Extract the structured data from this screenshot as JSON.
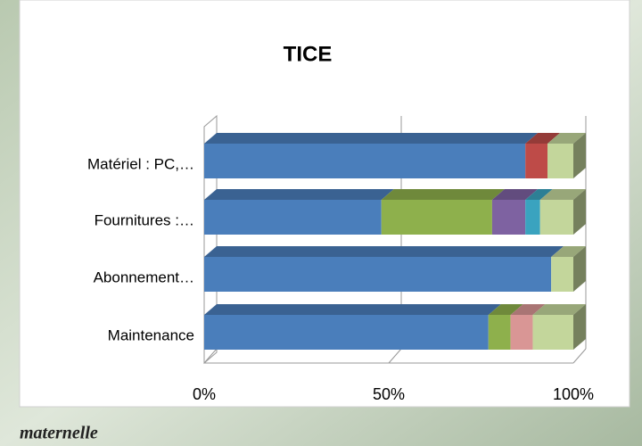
{
  "chart_data": {
    "type": "stacked-bar-3d",
    "title": "TICE",
    "categories": [
      "Matériel : PC,…",
      "Fournitures :…",
      "Abonnement…",
      "Maintenance"
    ],
    "series": [
      {
        "color": "#4a7ebb",
        "values": [
          87,
          48,
          94,
          77
        ]
      },
      {
        "color": "#be4b48",
        "values": [
          6,
          0,
          0,
          0
        ]
      },
      {
        "color": "#8eb04c",
        "values": [
          0,
          30,
          0,
          6
        ]
      },
      {
        "color": "#7e62a1",
        "values": [
          0,
          9,
          0,
          0
        ]
      },
      {
        "color": "#3aa3bf",
        "values": [
          0,
          4,
          0,
          0
        ]
      },
      {
        "color": "#d99695",
        "values": [
          0,
          0,
          0,
          6
        ]
      },
      {
        "color": "#c3d69b",
        "values": [
          7,
          9,
          6,
          11
        ]
      }
    ],
    "xlim": [
      0,
      100
    ],
    "xticks": [
      {
        "value": 0,
        "label": "0%"
      },
      {
        "value": 50,
        "label": "50%"
      },
      {
        "value": 100,
        "label": "100%"
      }
    ],
    "grid": true
  },
  "footer": "maternelle"
}
